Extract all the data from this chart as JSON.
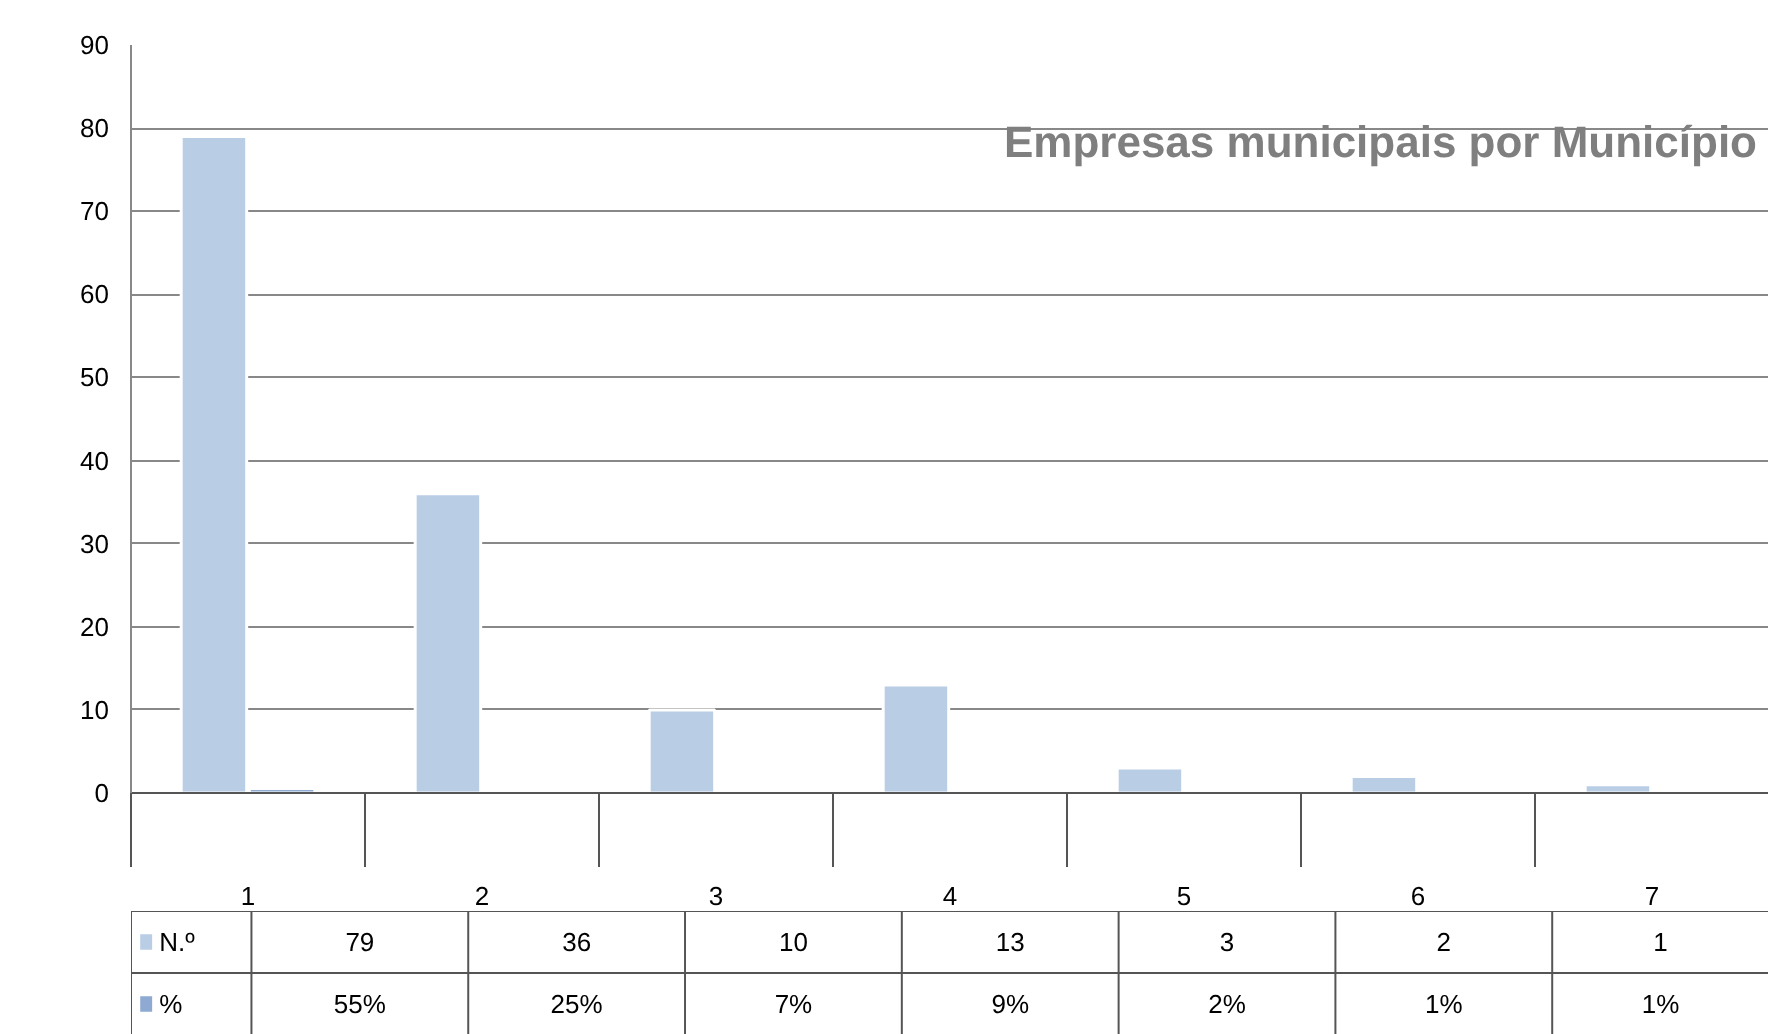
{
  "chart_data": {
    "type": "bar",
    "title": "Empresas municipais por Município",
    "categories": [
      "1",
      "2",
      "3",
      "4",
      "5",
      "6",
      "7"
    ],
    "series": [
      {
        "name": "N.º",
        "color": "#b9cde5",
        "values": [
          79,
          36,
          10,
          13,
          3,
          2,
          1
        ],
        "value_labels": [
          "79",
          "36",
          "10",
          "13",
          "3",
          "2",
          "1"
        ]
      },
      {
        "name": "%",
        "color": "#8eaad3",
        "values": [
          0.55,
          0.25,
          0.07,
          0.09,
          0.02,
          0.01,
          0.01
        ],
        "value_labels": [
          "55%",
          "25%",
          "7%",
          "9%",
          "2%",
          "1%",
          "1%"
        ]
      }
    ],
    "ylim": [
      0,
      90
    ],
    "yticks": [
      0,
      10,
      20,
      30,
      40,
      50,
      60,
      70,
      80,
      90
    ],
    "grid": "y",
    "legend": "left"
  }
}
